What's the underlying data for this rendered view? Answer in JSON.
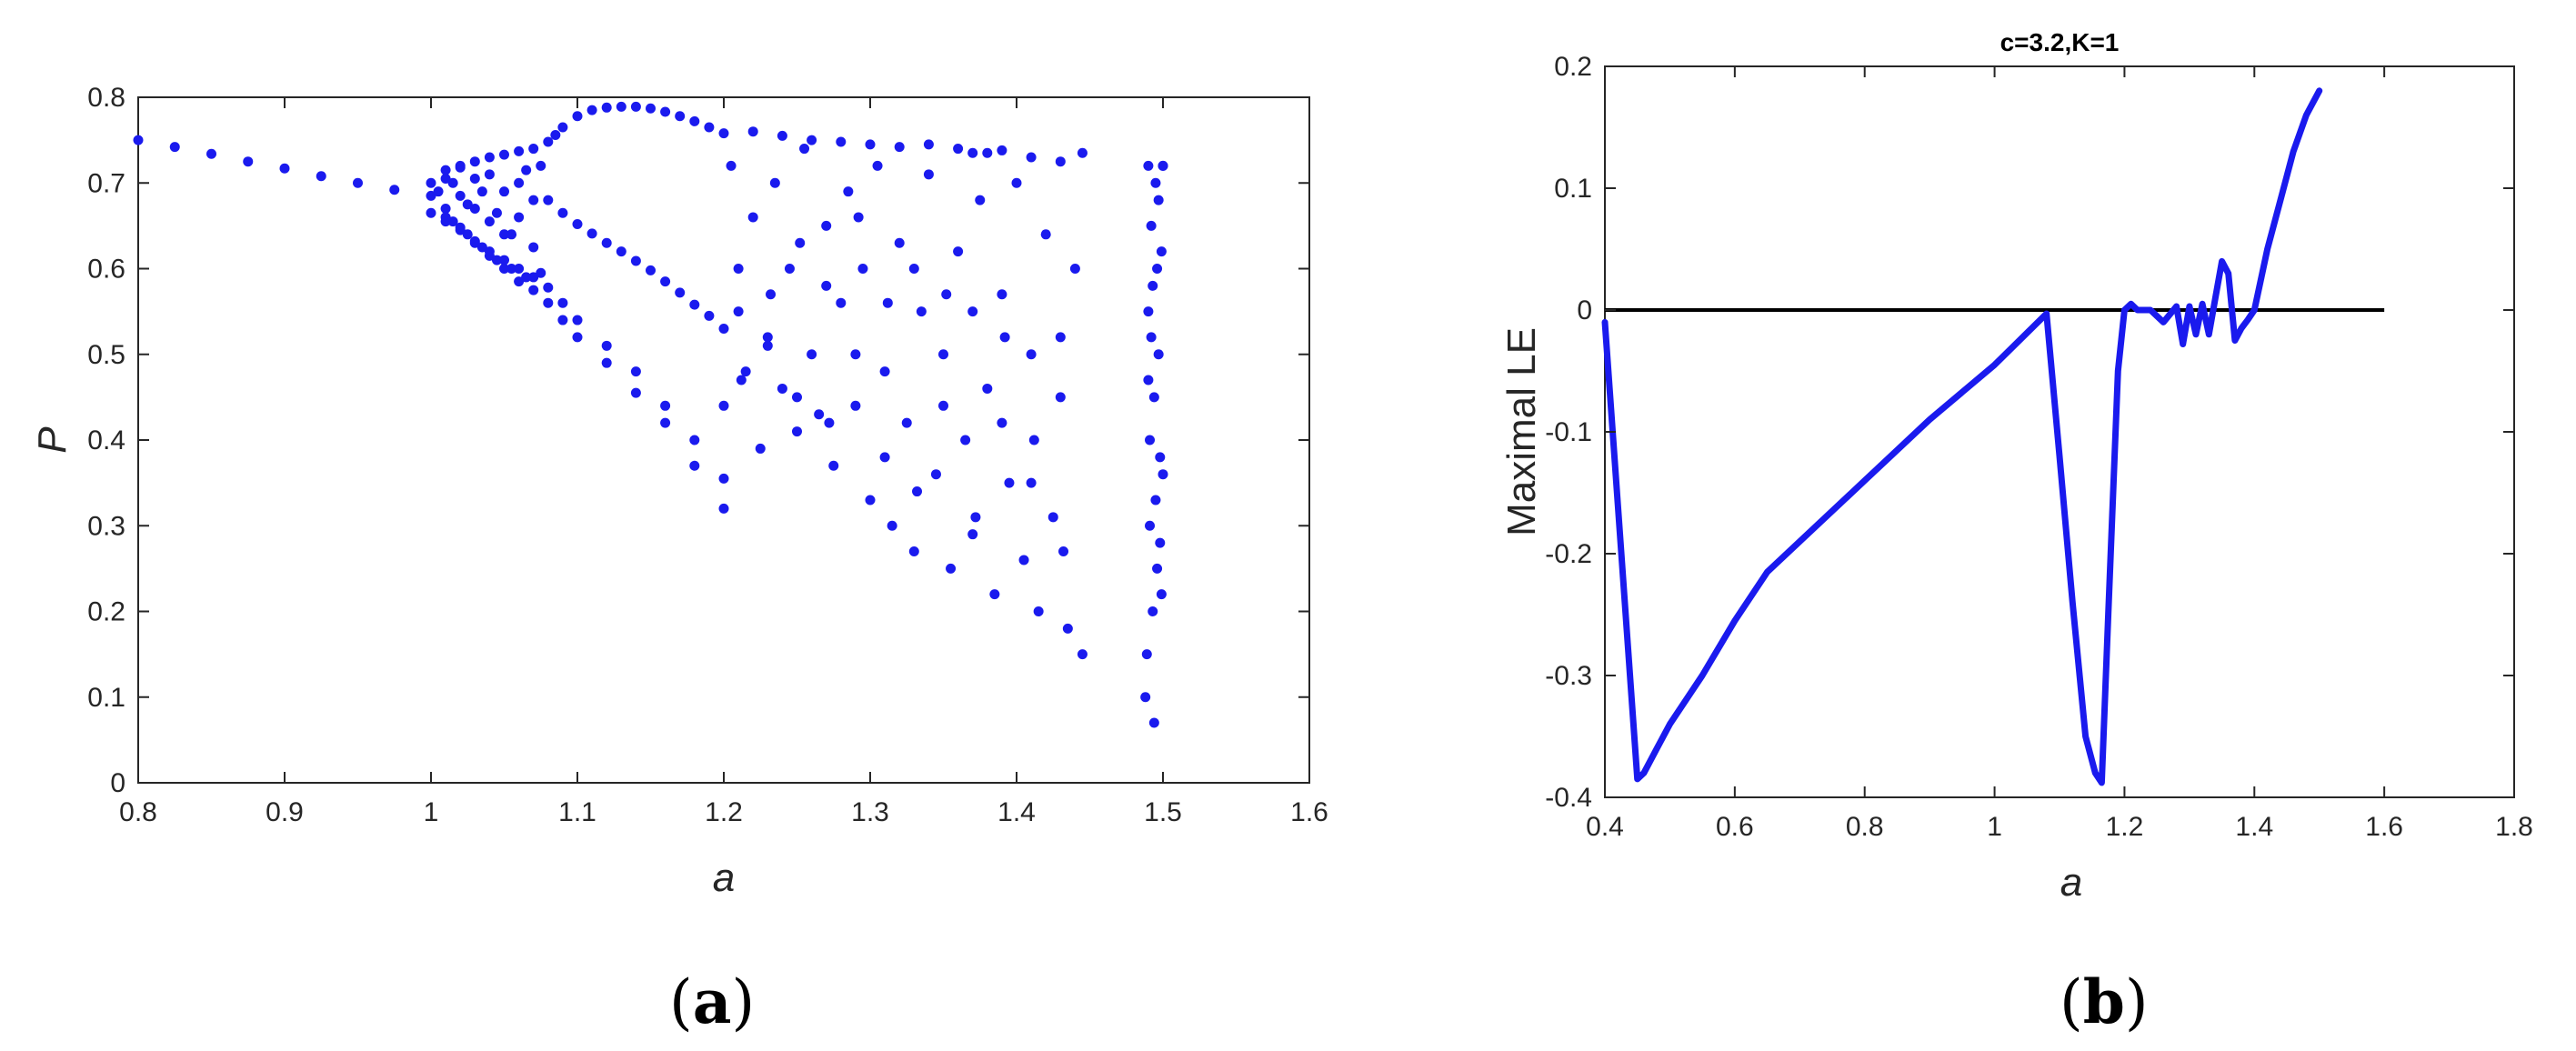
{
  "colors": {
    "series": "#1a1aee",
    "zero_line": "#000000",
    "axes": "#262626",
    "background": "#ffffff"
  },
  "chart_data": [
    {
      "type": "scatter",
      "panel_label": "(a)",
      "caption_open": "(",
      "caption_letter": "a",
      "caption_close": ")",
      "title": "",
      "xlabel": "a",
      "ylabel": "P",
      "xlim": [
        0.8,
        1.6
      ],
      "ylim": [
        0,
        0.8
      ],
      "xticks": [
        0.8,
        0.9,
        1.0,
        1.1,
        1.2,
        1.3,
        1.4,
        1.5,
        1.6
      ],
      "xtick_labels": [
        "0.8",
        "0.9",
        "1",
        "1.1",
        "1.2",
        "1.3",
        "1.4",
        "1.5",
        "1.6"
      ],
      "yticks": [
        0,
        0.1,
        0.2,
        0.3,
        0.4,
        0.5,
        0.6,
        0.7,
        0.8
      ],
      "ytick_labels": [
        "0",
        "0.1",
        "0.2",
        "0.3",
        "0.4",
        "0.5",
        "0.6",
        "0.7",
        "0.8"
      ],
      "grid": false,
      "legend": "none",
      "series": [
        {
          "x": [
            0.8,
            0.825,
            0.85,
            0.875,
            0.9,
            0.925,
            0.95,
            0.975,
            1.0,
            1.01,
            1.02,
            1.03,
            1.04,
            1.05,
            1.06,
            1.07,
            1.08,
            1.085,
            1.09,
            1.1,
            1.11,
            1.12,
            1.13,
            1.14,
            1.15,
            1.16,
            1.17,
            1.18,
            1.19,
            1.2,
            1.22,
            1.24,
            1.26,
            1.28,
            1.3,
            1.32,
            1.34,
            1.36,
            1.37,
            1.38,
            1.39,
            1.41,
            1.43,
            1.445,
            1.49,
            1.5
          ],
          "y": [
            0.75,
            0.742,
            0.734,
            0.725,
            0.717,
            0.708,
            0.7,
            0.692,
            0.685,
            0.705,
            0.718,
            0.725,
            0.73,
            0.733,
            0.737,
            0.74,
            0.748,
            0.756,
            0.765,
            0.778,
            0.785,
            0.788,
            0.789,
            0.789,
            0.787,
            0.783,
            0.778,
            0.772,
            0.765,
            0.758,
            0.76,
            0.755,
            0.75,
            0.748,
            0.745,
            0.742,
            0.745,
            0.74,
            0.735,
            0.735,
            0.738,
            0.73,
            0.725,
            0.735,
            0.72,
            0.72
          ]
        },
        {
          "x": [
            1.0,
            1.01,
            1.02,
            1.03,
            1.04,
            1.05,
            1.06,
            1.07,
            1.08,
            1.09,
            1.1,
            1.12,
            1.14,
            1.16,
            1.18,
            1.2
          ],
          "y": [
            0.665,
            0.655,
            0.645,
            0.632,
            0.62,
            0.61,
            0.6,
            0.59,
            0.578,
            0.56,
            0.54,
            0.51,
            0.48,
            0.44,
            0.4,
            0.355
          ]
        },
        {
          "x": [
            1.0,
            1.01,
            1.02,
            1.03,
            1.04,
            1.05,
            1.06,
            1.07,
            1.08,
            1.09,
            1.1,
            1.12,
            1.14,
            1.16,
            1.18,
            1.2
          ],
          "y": [
            0.7,
            0.67,
            0.648,
            0.63,
            0.615,
            0.6,
            0.585,
            0.575,
            0.56,
            0.54,
            0.52,
            0.49,
            0.455,
            0.42,
            0.37,
            0.32
          ]
        },
        {
          "x": [
            1.075,
            1.08,
            1.09,
            1.1,
            1.11,
            1.12,
            1.13,
            1.14,
            1.15,
            1.16,
            1.17,
            1.18,
            1.19,
            1.2
          ],
          "y": [
            0.72,
            0.68,
            0.665,
            0.652,
            0.641,
            0.63,
            0.62,
            0.609,
            0.598,
            0.585,
            0.572,
            0.558,
            0.545,
            0.53
          ]
        },
        {
          "x": [
            1.005,
            1.01,
            1.015,
            1.02,
            1.025,
            1.03,
            1.035,
            1.04,
            1.045,
            1.05,
            1.055,
            1.06,
            1.065,
            1.07,
            1.075,
            1.01,
            1.02,
            1.03,
            1.04,
            1.05,
            1.06,
            1.07,
            1.015,
            1.025,
            1.035,
            1.045,
            1.055,
            1.065
          ],
          "y": [
            0.69,
            0.715,
            0.655,
            0.72,
            0.64,
            0.705,
            0.625,
            0.71,
            0.61,
            0.69,
            0.6,
            0.7,
            0.59,
            0.68,
            0.595,
            0.66,
            0.685,
            0.67,
            0.655,
            0.64,
            0.66,
            0.625,
            0.7,
            0.675,
            0.69,
            0.665,
            0.64,
            0.715
          ]
        },
        {
          "x": [
            1.2,
            1.205,
            1.21,
            1.215,
            1.22,
            1.225,
            1.23,
            1.235,
            1.24,
            1.245,
            1.25,
            1.255,
            1.26,
            1.265,
            1.27,
            1.275,
            1.28,
            1.285,
            1.29,
            1.295,
            1.3,
            1.305,
            1.31,
            1.315,
            1.32,
            1.325,
            1.33,
            1.335,
            1.34,
            1.345,
            1.35,
            1.355,
            1.36,
            1.365,
            1.37,
            1.375,
            1.38,
            1.385,
            1.39,
            1.395,
            1.4,
            1.405,
            1.41,
            1.415,
            1.42,
            1.425,
            1.43,
            1.435,
            1.44,
            1.445
          ],
          "y": [
            0.44,
            0.72,
            0.55,
            0.48,
            0.66,
            0.39,
            0.52,
            0.7,
            0.46,
            0.6,
            0.41,
            0.74,
            0.5,
            0.43,
            0.65,
            0.37,
            0.56,
            0.69,
            0.44,
            0.6,
            0.33,
            0.72,
            0.48,
            0.3,
            0.63,
            0.42,
            0.27,
            0.55,
            0.71,
            0.36,
            0.5,
            0.25,
            0.62,
            0.4,
            0.29,
            0.68,
            0.46,
            0.22,
            0.57,
            0.35,
            0.7,
            0.26,
            0.5,
            0.2,
            0.64,
            0.31,
            0.45,
            0.18,
            0.6,
            0.15
          ]
        },
        {
          "x": [
            1.21,
            1.23,
            1.25,
            1.27,
            1.29,
            1.31,
            1.33,
            1.35,
            1.37,
            1.39,
            1.41,
            1.43,
            1.212,
            1.232,
            1.252,
            1.272,
            1.292,
            1.312,
            1.332,
            1.352,
            1.372,
            1.392,
            1.412,
            1.432
          ],
          "y": [
            0.6,
            0.51,
            0.45,
            0.58,
            0.5,
            0.38,
            0.6,
            0.44,
            0.55,
            0.42,
            0.35,
            0.52,
            0.47,
            0.57,
            0.63,
            0.42,
            0.66,
            0.56,
            0.34,
            0.57,
            0.31,
            0.52,
            0.4,
            0.27
          ]
        },
        {
          "x": [
            1.488,
            1.49,
            1.491,
            1.492,
            1.493,
            1.494,
            1.495,
            1.496,
            1.497,
            1.498,
            1.499,
            1.5,
            1.489,
            1.491,
            1.493,
            1.495,
            1.497,
            1.499,
            1.49,
            1.494,
            1.496,
            1.498,
            1.492,
            1.5
          ],
          "y": [
            0.1,
            0.55,
            0.3,
            0.65,
            0.2,
            0.45,
            0.7,
            0.25,
            0.5,
            0.38,
            0.62,
            0.72,
            0.15,
            0.4,
            0.58,
            0.33,
            0.68,
            0.22,
            0.47,
            0.07,
            0.6,
            0.28,
            0.52,
            0.36
          ]
        }
      ]
    },
    {
      "type": "line",
      "panel_label": "(b)",
      "caption_open": "(",
      "caption_letter": "b",
      "caption_close": ")",
      "title": "c=3.2,K=1",
      "xlabel": "a",
      "ylabel": "Maximal LE",
      "xlim": [
        0.4,
        1.8
      ],
      "ylim": [
        -0.4,
        0.2
      ],
      "xticks": [
        0.4,
        0.6,
        0.8,
        1.0,
        1.2,
        1.4,
        1.6,
        1.8
      ],
      "xtick_labels": [
        "0.4",
        "0.6",
        "0.8",
        "1",
        "1.2",
        "1.4",
        "1.6",
        "1.8"
      ],
      "yticks": [
        -0.4,
        -0.3,
        -0.2,
        -0.1,
        0,
        0.1,
        0.2
      ],
      "ytick_labels": [
        "-0.4",
        "-0.3",
        "-0.2",
        "-0.1",
        "0",
        "0.1",
        "0.2"
      ],
      "grid": false,
      "legend": "none",
      "reference_line": {
        "y": 0,
        "x_range": [
          0.4,
          1.6
        ]
      },
      "series": [
        {
          "x": [
            0.4,
            0.45,
            0.46,
            0.48,
            0.5,
            0.55,
            0.6,
            0.65,
            0.7,
            0.8,
            0.9,
            1.0,
            1.08,
            1.1,
            1.12,
            1.14,
            1.155,
            1.165,
            1.175,
            1.19,
            1.2,
            1.21,
            1.22,
            1.24,
            1.26,
            1.28,
            1.29,
            1.3,
            1.31,
            1.32,
            1.33,
            1.34,
            1.35,
            1.36,
            1.37,
            1.38,
            1.39,
            1.4,
            1.42,
            1.44,
            1.46,
            1.48,
            1.5
          ],
          "y": [
            -0.01,
            -0.385,
            -0.38,
            -0.36,
            -0.34,
            -0.3,
            -0.255,
            -0.215,
            -0.19,
            -0.14,
            -0.09,
            -0.045,
            -0.003,
            -0.12,
            -0.24,
            -0.35,
            -0.38,
            -0.388,
            -0.25,
            -0.05,
            0.0,
            0.005,
            0.0,
            0.0,
            -0.01,
            0.003,
            -0.028,
            0.003,
            -0.02,
            0.005,
            -0.02,
            0.01,
            0.04,
            0.03,
            -0.025,
            -0.015,
            -0.008,
            0.0,
            0.05,
            0.09,
            0.13,
            0.16,
            0.18
          ]
        }
      ]
    }
  ]
}
